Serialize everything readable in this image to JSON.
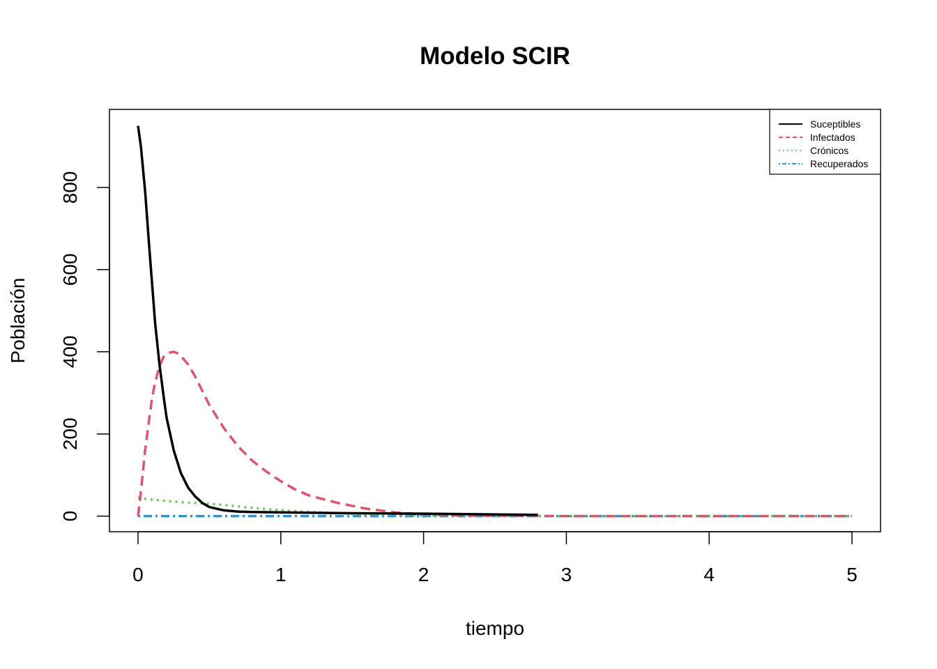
{
  "chart_data": {
    "type": "line",
    "title": "Modelo SCIR",
    "xlabel": "tiempo",
    "ylabel": "Población",
    "xlim": [
      -0.2,
      5.2
    ],
    "ylim": [
      -38,
      990
    ],
    "xticks": [
      0,
      1,
      2,
      3,
      4,
      5
    ],
    "yticks": [
      0,
      200,
      400,
      600,
      800
    ],
    "grid": false,
    "legend_position": "top-right",
    "series": [
      {
        "name": "Suceptibles",
        "color": "#000000",
        "style": "solid",
        "x": [
          0,
          0.02,
          0.05,
          0.08,
          0.1,
          0.12,
          0.15,
          0.18,
          0.2,
          0.25,
          0.3,
          0.35,
          0.4,
          0.45,
          0.5,
          0.6,
          0.7,
          0.8,
          1.0,
          1.5,
          2.0,
          2.8
        ],
        "y": [
          950,
          900,
          790,
          650,
          560,
          470,
          370,
          290,
          240,
          160,
          105,
          70,
          48,
          32,
          22,
          14,
          11,
          10,
          9,
          7,
          6,
          3
        ]
      },
      {
        "name": "Infectados",
        "color": "#DF536B",
        "style": "dashed",
        "x": [
          0,
          0.02,
          0.05,
          0.08,
          0.1,
          0.12,
          0.15,
          0.18,
          0.2,
          0.22,
          0.25,
          0.28,
          0.3,
          0.35,
          0.4,
          0.45,
          0.5,
          0.6,
          0.7,
          0.8,
          0.9,
          1.0,
          1.1,
          1.2,
          1.4,
          1.6,
          1.8,
          2.0,
          2.2,
          2.5,
          3.0,
          3.5,
          4.0,
          4.5,
          5.0
        ],
        "y": [
          0,
          60,
          160,
          240,
          290,
          325,
          365,
          388,
          395,
          398,
          400,
          396,
          390,
          370,
          340,
          305,
          270,
          215,
          170,
          135,
          108,
          85,
          65,
          50,
          32,
          18,
          9,
          4,
          2,
          1,
          0,
          0,
          0,
          0,
          0
        ]
      },
      {
        "name": "Crónicos",
        "color": "#61D04F",
        "style": "dotted",
        "x": [
          0,
          0.05,
          0.1,
          0.2,
          0.3,
          0.4,
          0.5,
          0.6,
          0.8,
          1.0,
          1.2,
          1.5,
          2.0,
          2.5,
          3.0,
          4.0,
          5.0
        ],
        "y": [
          45,
          42,
          40,
          37,
          34,
          32,
          30,
          27,
          20,
          14,
          10,
          6,
          2,
          1,
          0,
          0,
          0
        ]
      },
      {
        "name": "Recuperados",
        "color": "#2297E6",
        "style": "dotdash",
        "x": [
          0,
          1,
          2,
          3,
          4,
          5
        ],
        "y": [
          0,
          0,
          0,
          0,
          0,
          0
        ]
      }
    ]
  }
}
